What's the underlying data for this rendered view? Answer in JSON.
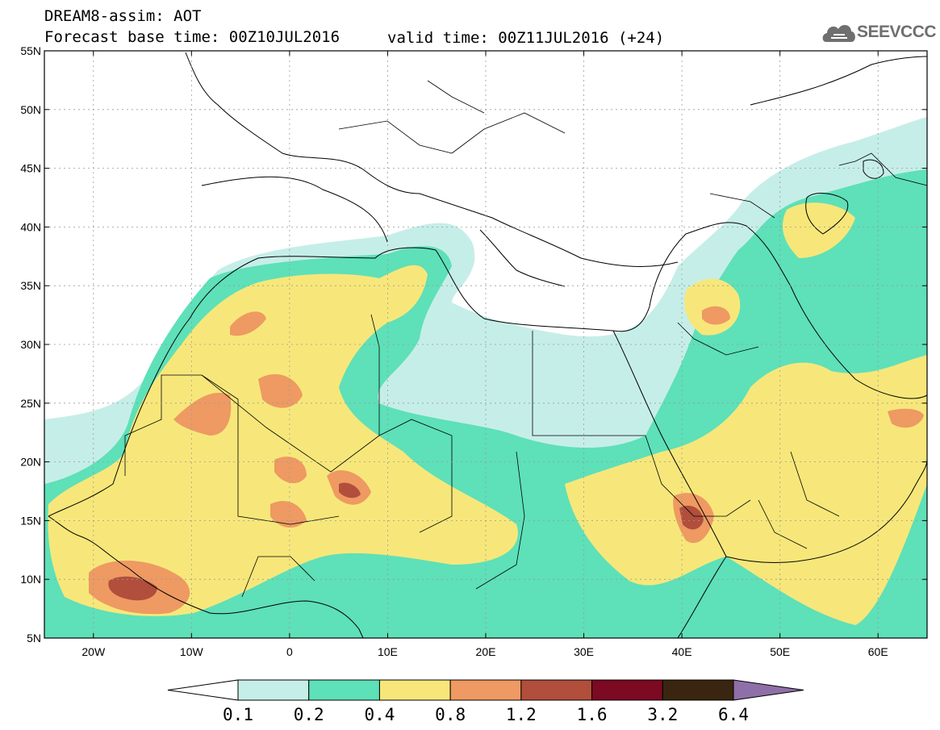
{
  "header": {
    "model_line": "DREAM8-assim: AOT",
    "base_time": "Forecast base time: 00Z10JUL2016",
    "valid_time": "valid time: 00Z11JUL2016 (+24)",
    "logo_text": "SEEVCCC",
    "logo_icon": "cloud-icon"
  },
  "map": {
    "lon_range": [
      -25,
      65
    ],
    "lat_range": [
      5,
      55
    ],
    "grid": "dotted",
    "lat_labels": [
      "55N",
      "50N",
      "45N",
      "40N",
      "35N",
      "30N",
      "25N",
      "20N",
      "15N",
      "10N",
      "5N"
    ],
    "lat_values": [
      55,
      50,
      45,
      40,
      35,
      30,
      25,
      20,
      15,
      10,
      5
    ],
    "lon_labels": [
      "20W",
      "10W",
      "0",
      "10E",
      "20E",
      "30E",
      "40E",
      "50E",
      "60E"
    ],
    "lon_values": [
      -20,
      -10,
      0,
      10,
      20,
      30,
      40,
      50,
      60
    ]
  },
  "colorbar": {
    "levels": [
      "0.1",
      "0.2",
      "0.4",
      "0.8",
      "1.2",
      "1.6",
      "3.2",
      "6.4"
    ],
    "colors": [
      "#ffffff",
      "#c6eee8",
      "#5ee0b8",
      "#f7e77a",
      "#ee9a62",
      "#b14e3c",
      "#7c0a22",
      "#3a2610",
      "#8f6fa8"
    ]
  }
}
